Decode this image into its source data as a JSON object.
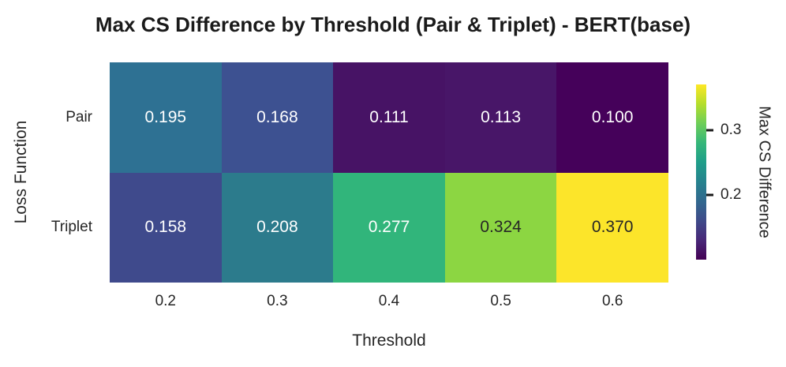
{
  "title": "Max CS Difference by Threshold (Pair & Triplet) - BERT(base)",
  "chart_data": {
    "type": "heatmap",
    "title": "Max CS Difference by Threshold (Pair & Triplet) - BERT(base)",
    "xlabel": "Threshold",
    "ylabel": "Loss Function",
    "x_categories": [
      "0.2",
      "0.3",
      "0.4",
      "0.5",
      "0.6"
    ],
    "y_categories": [
      "Pair",
      "Triplet"
    ],
    "series": [
      {
        "name": "Pair",
        "values": [
          0.195,
          0.168,
          0.111,
          0.113,
          0.1
        ]
      },
      {
        "name": "Triplet",
        "values": [
          0.158,
          0.208,
          0.277,
          0.324,
          0.37
        ]
      }
    ],
    "value_format_decimals": 3,
    "cell_colors": [
      [
        "#2e7193",
        "#3d5191",
        "#471365",
        "#481668",
        "#45015a"
      ],
      [
        "#3f4a8c",
        "#2c7b8c",
        "#31b57b",
        "#8cd642",
        "#fce52a"
      ]
    ],
    "cell_text_colors": [
      [
        "#ffffff",
        "#ffffff",
        "#ffffff",
        "#ffffff",
        "#ffffff"
      ],
      [
        "#ffffff",
        "#ffffff",
        "#ffffff",
        "#262626",
        "#262626"
      ]
    ],
    "grid": false,
    "colorbar": {
      "label": "Max CS Difference",
      "range": [
        0.1,
        0.37
      ],
      "ticks": [
        {
          "label": "0.3",
          "value": 0.3
        },
        {
          "label": "0.2",
          "value": 0.2
        }
      ],
      "colormap": "viridis",
      "gradient_bottom_to_top": [
        "#440154",
        "#482878",
        "#3e4a89",
        "#31688e",
        "#26828e",
        "#1f9e89",
        "#35b779",
        "#6ece58",
        "#b5de2b",
        "#fde725"
      ]
    }
  }
}
